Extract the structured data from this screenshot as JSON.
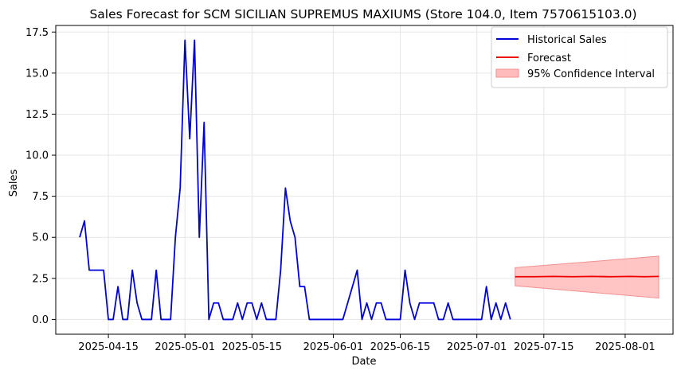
{
  "chart_data": {
    "type": "line",
    "title": "Sales Forecast for SCM SICILIAN SUPREMUS MAXIUMS (Store 104.0, Item 7570615103.0)",
    "xlabel": "Date",
    "ylabel": "Sales",
    "x_ticks": [
      "2025-04-15",
      "2025-05-01",
      "2025-05-15",
      "2025-06-01",
      "2025-06-15",
      "2025-07-01",
      "2025-07-15",
      "2025-08-01"
    ],
    "y_ticks": [
      "0.0",
      "2.5",
      "5.0",
      "7.5",
      "10.0",
      "12.5",
      "15.0",
      "17.5"
    ],
    "ylim": [
      -0.9,
      17.9
    ],
    "xlim": [
      "2025-04-04",
      "2025-08-11"
    ],
    "grid": true,
    "legend_position": "top-right",
    "series": [
      {
        "name": "Historical Sales",
        "color": "#0000dd",
        "points": [
          [
            "2025-04-09",
            5
          ],
          [
            "2025-04-10",
            6
          ],
          [
            "2025-04-11",
            3
          ],
          [
            "2025-04-12",
            3
          ],
          [
            "2025-04-13",
            3
          ],
          [
            "2025-04-14",
            3
          ],
          [
            "2025-04-15",
            0
          ],
          [
            "2025-04-16",
            0
          ],
          [
            "2025-04-17",
            2
          ],
          [
            "2025-04-18",
            0
          ],
          [
            "2025-04-19",
            0
          ],
          [
            "2025-04-20",
            3
          ],
          [
            "2025-04-21",
            1
          ],
          [
            "2025-04-22",
            0
          ],
          [
            "2025-04-23",
            0
          ],
          [
            "2025-04-24",
            0
          ],
          [
            "2025-04-25",
            3
          ],
          [
            "2025-04-26",
            0
          ],
          [
            "2025-04-27",
            0
          ],
          [
            "2025-04-28",
            0
          ],
          [
            "2025-04-29",
            5
          ],
          [
            "2025-04-30",
            8
          ],
          [
            "2025-05-01",
            17
          ],
          [
            "2025-05-02",
            11
          ],
          [
            "2025-05-03",
            17
          ],
          [
            "2025-05-04",
            5
          ],
          [
            "2025-05-05",
            12
          ],
          [
            "2025-05-06",
            0
          ],
          [
            "2025-05-07",
            1
          ],
          [
            "2025-05-08",
            1
          ],
          [
            "2025-05-09",
            0
          ],
          [
            "2025-05-10",
            0
          ],
          [
            "2025-05-11",
            0
          ],
          [
            "2025-05-12",
            1
          ],
          [
            "2025-05-13",
            0
          ],
          [
            "2025-05-14",
            1
          ],
          [
            "2025-05-15",
            1
          ],
          [
            "2025-05-16",
            0
          ],
          [
            "2025-05-17",
            1
          ],
          [
            "2025-05-18",
            0
          ],
          [
            "2025-05-19",
            0
          ],
          [
            "2025-05-20",
            0
          ],
          [
            "2025-05-21",
            3
          ],
          [
            "2025-05-22",
            8
          ],
          [
            "2025-05-23",
            6
          ],
          [
            "2025-05-24",
            5
          ],
          [
            "2025-05-25",
            2
          ],
          [
            "2025-05-26",
            2
          ],
          [
            "2025-05-27",
            0
          ],
          [
            "2025-05-28",
            0
          ],
          [
            "2025-05-29",
            0
          ],
          [
            "2025-05-30",
            0
          ],
          [
            "2025-05-31",
            0
          ],
          [
            "2025-06-01",
            0
          ],
          [
            "2025-06-02",
            0
          ],
          [
            "2025-06-03",
            0
          ],
          [
            "2025-06-04",
            1
          ],
          [
            "2025-06-05",
            2
          ],
          [
            "2025-06-06",
            3
          ],
          [
            "2025-06-07",
            0
          ],
          [
            "2025-06-08",
            1
          ],
          [
            "2025-06-09",
            0
          ],
          [
            "2025-06-10",
            1
          ],
          [
            "2025-06-11",
            1
          ],
          [
            "2025-06-12",
            0
          ],
          [
            "2025-06-13",
            0
          ],
          [
            "2025-06-14",
            0
          ],
          [
            "2025-06-15",
            0
          ],
          [
            "2025-06-16",
            3
          ],
          [
            "2025-06-17",
            1
          ],
          [
            "2025-06-18",
            0
          ],
          [
            "2025-06-19",
            1
          ],
          [
            "2025-06-20",
            1
          ],
          [
            "2025-06-21",
            1
          ],
          [
            "2025-06-22",
            1
          ],
          [
            "2025-06-23",
            0
          ],
          [
            "2025-06-24",
            0
          ],
          [
            "2025-06-25",
            1
          ],
          [
            "2025-06-26",
            0
          ],
          [
            "2025-06-27",
            0
          ],
          [
            "2025-06-28",
            0
          ],
          [
            "2025-06-29",
            0
          ],
          [
            "2025-06-30",
            0
          ],
          [
            "2025-07-01",
            0
          ],
          [
            "2025-07-02",
            0
          ],
          [
            "2025-07-03",
            2
          ],
          [
            "2025-07-04",
            0
          ],
          [
            "2025-07-05",
            1
          ],
          [
            "2025-07-06",
            0
          ],
          [
            "2025-07-07",
            1
          ],
          [
            "2025-07-08",
            0
          ]
        ]
      },
      {
        "name": "Forecast",
        "color": "#ee0000",
        "points": [
          [
            "2025-07-09",
            2.6
          ],
          [
            "2025-07-13",
            2.6
          ],
          [
            "2025-07-17",
            2.62
          ],
          [
            "2025-07-21",
            2.6
          ],
          [
            "2025-07-25",
            2.62
          ],
          [
            "2025-07-29",
            2.6
          ],
          [
            "2025-08-02",
            2.62
          ],
          [
            "2025-08-05",
            2.6
          ],
          [
            "2025-08-08",
            2.62
          ]
        ]
      }
    ],
    "confidence_interval": {
      "name": "95% Confidence Interval",
      "color": "#ffbbbb",
      "edge_color": "#f29090",
      "points": [
        [
          "2025-07-09",
          2.05,
          3.15
        ],
        [
          "2025-08-08",
          1.3,
          3.85
        ]
      ]
    }
  }
}
